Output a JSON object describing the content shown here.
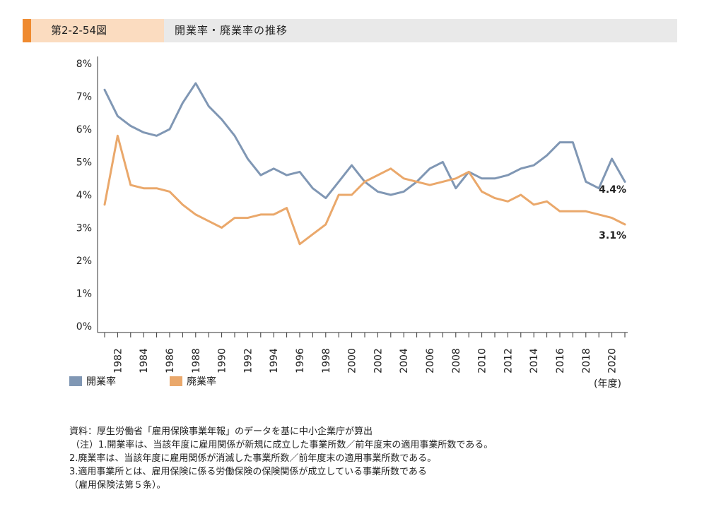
{
  "header": {
    "figure_number": "第2-2-54図",
    "title": "開業率・廃業率の推移"
  },
  "colors": {
    "accent": "#ef8a2f",
    "header_tab": "#fbdcc0",
    "header_bg": "#e9e9e9",
    "opening": "#8097b4",
    "closing": "#eaa86b"
  },
  "chart_data": {
    "type": "line",
    "x": [
      1981,
      1982,
      1983,
      1984,
      1985,
      1986,
      1987,
      1988,
      1989,
      1990,
      1991,
      1992,
      1993,
      1994,
      1995,
      1996,
      1997,
      1998,
      1999,
      2000,
      2001,
      2002,
      2003,
      2004,
      2005,
      2006,
      2007,
      2008,
      2009,
      2010,
      2011,
      2012,
      2013,
      2014,
      2015,
      2016,
      2017,
      2018,
      2019,
      2020,
      2021
    ],
    "x_tick_labels": [
      "1982",
      "1984",
      "1986",
      "1988",
      "1990",
      "1992",
      "1994",
      "1996",
      "1998",
      "2000",
      "2002",
      "2004",
      "2006",
      "2008",
      "2010",
      "2012",
      "2014",
      "2016",
      "2018",
      "2020"
    ],
    "y_tick_labels": [
      "0%",
      "1%",
      "2%",
      "3%",
      "4%",
      "5%",
      "6%",
      "7%",
      "8%"
    ],
    "ylim": [
      0,
      8
    ],
    "xlabel": "(年度)",
    "series": [
      {
        "name": "開業率",
        "color": "#8097b4",
        "values": [
          7.2,
          6.4,
          6.1,
          5.9,
          5.8,
          6.0,
          6.8,
          7.4,
          6.7,
          6.3,
          5.8,
          5.1,
          4.6,
          4.8,
          4.6,
          4.7,
          4.2,
          3.9,
          4.4,
          4.9,
          4.4,
          4.1,
          4.0,
          4.1,
          4.4,
          4.8,
          5.0,
          4.2,
          4.7,
          4.5,
          4.5,
          4.6,
          4.8,
          4.9,
          5.2,
          5.6,
          5.6,
          4.4,
          4.2,
          5.1,
          4.4
        ],
        "end_label": "4.4%"
      },
      {
        "name": "廃業率",
        "color": "#eaa86b",
        "values": [
          3.7,
          5.8,
          4.3,
          4.2,
          4.2,
          4.1,
          3.7,
          3.4,
          3.2,
          3.0,
          3.3,
          3.3,
          3.4,
          3.4,
          3.6,
          2.5,
          2.8,
          3.1,
          4.0,
          4.0,
          4.4,
          4.6,
          4.8,
          4.5,
          4.4,
          4.3,
          4.4,
          4.5,
          4.7,
          4.1,
          3.9,
          3.8,
          4.0,
          3.7,
          3.8,
          3.5,
          3.5,
          3.5,
          3.4,
          3.3,
          3.1
        ],
        "end_label": "3.1%"
      }
    ],
    "grid": false,
    "legend_position": "bottom-left"
  },
  "notes": [
    "資料：厚生労働省「雇用保険事業年報」のデータを基に中小企業庁が算出",
    "（注）1.開業率は、当該年度に雇用関係が新規に成立した事業所数／前年度末の適用事業所数である。",
    "2.廃業率は、当該年度に雇用関係が消滅した事業所数／前年度末の適用事業所数である。",
    "3.適用事業所とは、雇用保険に係る労働保険の保険関係が成立している事業所数である",
    "（雇用保険法第５条）。"
  ]
}
